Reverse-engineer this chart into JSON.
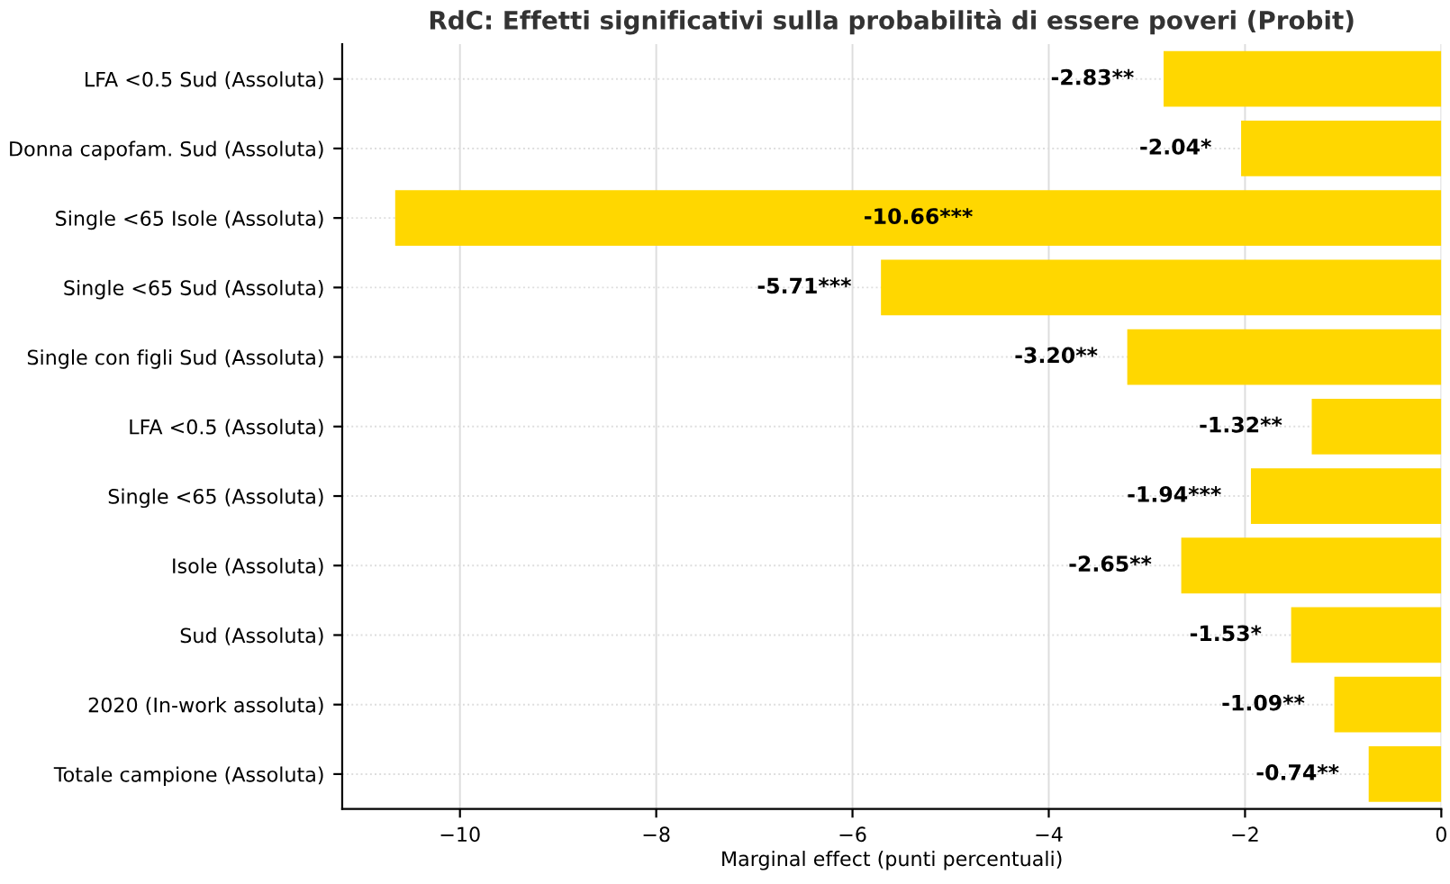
{
  "chart_data": {
    "type": "bar",
    "orientation": "horizontal",
    "title": "RdC: Effetti significativi sulla probabilità di essere poveri (Probit)",
    "xlabel": "Marginal effect (punti percentuali)",
    "categories": [
      "LFA <0.5 Sud (Assoluta)",
      "Donna capofam. Sud (Assoluta)",
      "Single <65 Isole (Assoluta)",
      "Single <65 Sud (Assoluta)",
      "Single con figli Sud (Assoluta)",
      "LFA <0.5 (Assoluta)",
      "Single <65 (Assoluta)",
      "Isole (Assoluta)",
      "Sud (Assoluta)",
      "2020 (In-work assoluta)",
      "Totale campione (Assoluta)"
    ],
    "values": [
      -2.83,
      -2.04,
      -10.66,
      -5.71,
      -3.2,
      -1.32,
      -1.94,
      -2.65,
      -1.53,
      -1.09,
      -0.74
    ],
    "value_labels": [
      "-2.83**",
      "-2.04*",
      "-10.66***",
      "-5.71***",
      "-3.20**",
      "-1.32**",
      "-1.94***",
      "-2.65**",
      "-1.53*",
      "-1.09**",
      "-0.74**"
    ],
    "color": "#ffd700",
    "xlim": [
      -11.2,
      0
    ],
    "xticks": [
      {
        "value": -10,
        "label": "−10"
      },
      {
        "value": -8,
        "label": "−8"
      },
      {
        "value": -6,
        "label": "−6"
      },
      {
        "value": -4,
        "label": "−4"
      },
      {
        "value": -2,
        "label": "−2"
      },
      0
    ],
    "grid": true
  }
}
